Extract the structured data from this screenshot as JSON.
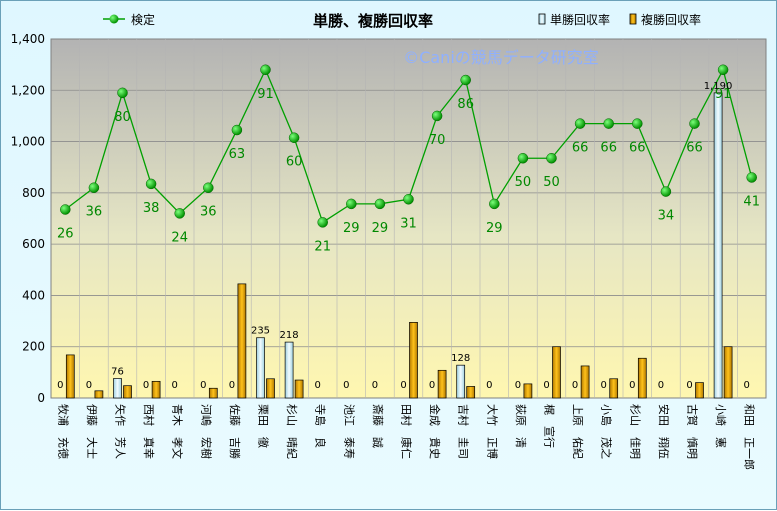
{
  "chart_data": {
    "type": "bar",
    "title": "単勝、複勝回収率",
    "watermark": "©Caniの競馬データ研究室",
    "ylim": [
      0,
      1400
    ],
    "yticks": [
      "0",
      "200",
      "400",
      "600",
      "800",
      "1,000",
      "1,200",
      "1,400"
    ],
    "grid": true,
    "legend": {
      "placement": "top"
    },
    "categories": [
      "牧浦　充徳",
      "伊藤　大士",
      "矢作　芳人",
      "西村　真幸",
      "青木　孝文",
      "河嶋　宏樹",
      "佐藤　吉勝",
      "栗田　徹",
      "杉山　晴紀",
      "寺島　良",
      "池江　泰寿",
      "斎藤　誠",
      "田村　康仁",
      "金成　貴史",
      "吉村　圭司",
      "大竹　正博",
      "荻原　清",
      "梶　宣行",
      "上原　佑紀",
      "小島　茂之",
      "杉山　佳明",
      "安田　翔伍",
      "古賀　慎明",
      "小崎　憲",
      "和田　正一郎"
    ],
    "series": [
      {
        "name": "単勝回収率",
        "color": "#d8f4fb",
        "values": [
          0,
          0,
          76,
          0,
          0,
          0,
          0,
          235,
          218,
          0,
          0,
          0,
          0,
          0,
          128,
          0,
          0,
          0,
          0,
          0,
          0,
          0,
          0,
          1190,
          0
        ],
        "labels": [
          "0",
          "0",
          "76",
          "0",
          "0",
          "0",
          "0",
          "235",
          "218",
          "0",
          "0",
          "0",
          "0",
          "0",
          "128",
          "0",
          "0",
          "0",
          "0",
          "0",
          "0",
          "0",
          "0",
          "1,190",
          "0"
        ]
      },
      {
        "name": "複勝回収率",
        "color": "#e3a500",
        "values": [
          168,
          28,
          48,
          65,
          0,
          38,
          445,
          75,
          70,
          0,
          0,
          0,
          295,
          108,
          45,
          0,
          55,
          200,
          125,
          75,
          155,
          0,
          60,
          200,
          0
        ]
      },
      {
        "name": "検定",
        "type": "line",
        "color": "#00a000",
        "values": [
          26,
          36,
          80,
          38,
          24,
          36,
          63,
          91,
          60,
          21,
          29,
          29,
          31,
          70,
          86,
          29,
          50,
          50,
          66,
          66,
          66,
          34,
          66,
          91,
          41
        ],
        "plot_values": [
          735,
          820,
          1190,
          835,
          720,
          820,
          1045,
          1280,
          1015,
          685,
          757,
          757,
          775,
          1100,
          1240,
          757,
          935,
          935,
          1070,
          1070,
          1070,
          805,
          1070,
          1280,
          860
        ]
      }
    ]
  }
}
